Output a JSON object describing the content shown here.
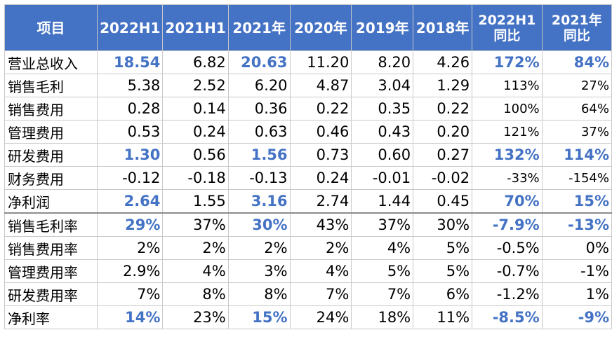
{
  "chart_data": {
    "type": "table",
    "columns": [
      "项目",
      "2022H1",
      "2021H1",
      "2021年",
      "2020年",
      "2019年",
      "2018年",
      "2022H1同比",
      "2021年同比"
    ],
    "rows": [
      {
        "label": "营业总收入",
        "values": [
          "18.54",
          "6.82",
          "20.63",
          "11.20",
          "8.20",
          "4.26",
          "172%",
          "84%"
        ],
        "highlight": [
          0,
          2,
          6,
          7
        ]
      },
      {
        "label": "销售毛利",
        "values": [
          "5.38",
          "2.52",
          "6.20",
          "4.87",
          "3.04",
          "1.29",
          "113%",
          "27%"
        ],
        "highlight": []
      },
      {
        "label": "销售费用",
        "values": [
          "0.28",
          "0.14",
          "0.36",
          "0.22",
          "0.35",
          "0.22",
          "100%",
          "64%"
        ],
        "highlight": []
      },
      {
        "label": "管理费用",
        "values": [
          "0.53",
          "0.24",
          "0.63",
          "0.46",
          "0.43",
          "0.20",
          "121%",
          "37%"
        ],
        "highlight": []
      },
      {
        "label": "研发费用",
        "values": [
          "1.30",
          "0.56",
          "1.56",
          "0.73",
          "0.60",
          "0.27",
          "132%",
          "114%"
        ],
        "highlight": [
          0,
          2,
          6,
          7
        ]
      },
      {
        "label": "财务费用",
        "values": [
          "-0.12",
          "-0.18",
          "-0.13",
          "0.24",
          "-0.01",
          "-0.02",
          "-33%",
          "-154%"
        ],
        "highlight": []
      },
      {
        "label": "净利润",
        "values": [
          "2.64",
          "1.55",
          "3.16",
          "2.74",
          "1.44",
          "0.45",
          "70%",
          "15%"
        ],
        "highlight": [
          0,
          2,
          6,
          7
        ]
      },
      {
        "label": "销售毛利率",
        "values": [
          "29%",
          "37%",
          "30%",
          "43%",
          "37%",
          "30%",
          "-7.9%",
          "-13%"
        ],
        "highlight": [
          0,
          2,
          6,
          7
        ]
      },
      {
        "label": "销售费用率",
        "values": [
          "2%",
          "2%",
          "2%",
          "2%",
          "4%",
          "5%",
          "-0.5%",
          "0%"
        ],
        "highlight": []
      },
      {
        "label": "管理费用率",
        "values": [
          "2.9%",
          "4%",
          "3%",
          "4%",
          "5%",
          "5%",
          "-0.7%",
          "-1%"
        ],
        "highlight": []
      },
      {
        "label": "研发费用率",
        "values": [
          "7%",
          "8%",
          "8%",
          "7%",
          "7%",
          "6%",
          "-1.2%",
          "1%"
        ],
        "highlight": []
      },
      {
        "label": "净利率",
        "values": [
          "14%",
          "23%",
          "15%",
          "24%",
          "18%",
          "11%",
          "-8.5%",
          "-9%"
        ],
        "highlight": [
          0,
          2,
          6,
          7
        ]
      }
    ],
    "header_color": "#4472c4",
    "highlight_color": "#4472c4"
  }
}
